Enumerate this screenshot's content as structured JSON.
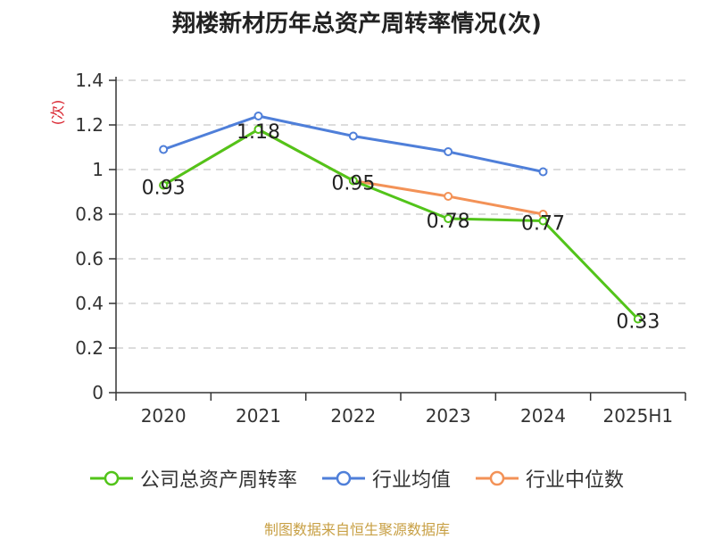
{
  "chart_data": {
    "type": "line",
    "title": "翔楼新材历年总资产周转率情况(次)",
    "ylabel": "(次)",
    "xlabel": "",
    "categories": [
      "2020",
      "2021",
      "2022",
      "2023",
      "2024",
      "2025H1"
    ],
    "ylim": [
      0,
      1.4
    ],
    "yticks": [
      "0",
      "0.2",
      "0.4",
      "0.6",
      "0.8",
      "1",
      "1.2",
      "1.4"
    ],
    "grid": true,
    "legend_position": "bottom",
    "series": [
      {
        "name": "公司总资产周转率",
        "color": "#52c41a",
        "values": [
          0.93,
          1.18,
          0.95,
          0.78,
          0.77,
          0.33
        ],
        "labels": [
          "0.93",
          "1.18",
          "0.95",
          "0.78",
          "0.77",
          "0.33"
        ]
      },
      {
        "name": "行业均值",
        "color": "#4f7fd9",
        "values": [
          1.09,
          1.24,
          1.15,
          1.08,
          0.99,
          null
        ]
      },
      {
        "name": "行业中位数",
        "color": "#f39257",
        "values": [
          0.93,
          1.18,
          0.95,
          0.88,
          0.8,
          null
        ]
      }
    ]
  },
  "source": "制图数据来自恒生聚源数据库"
}
